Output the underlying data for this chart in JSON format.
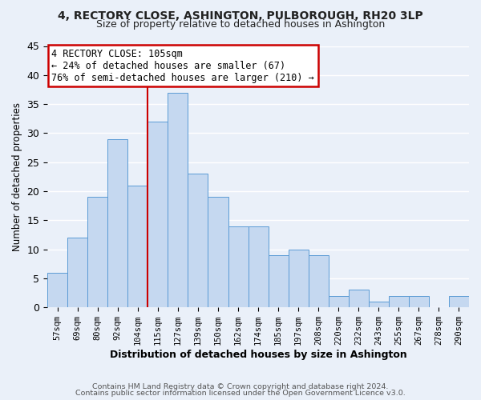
{
  "title1": "4, RECTORY CLOSE, ASHINGTON, PULBOROUGH, RH20 3LP",
  "title2": "Size of property relative to detached houses in Ashington",
  "xlabel": "Distribution of detached houses by size in Ashington",
  "ylabel": "Number of detached properties",
  "bar_labels": [
    "57sqm",
    "69sqm",
    "80sqm",
    "92sqm",
    "104sqm",
    "115sqm",
    "127sqm",
    "139sqm",
    "150sqm",
    "162sqm",
    "174sqm",
    "185sqm",
    "197sqm",
    "208sqm",
    "220sqm",
    "232sqm",
    "243sqm",
    "255sqm",
    "267sqm",
    "278sqm",
    "290sqm"
  ],
  "bar_values": [
    6,
    12,
    19,
    29,
    21,
    32,
    37,
    23,
    19,
    14,
    14,
    9,
    10,
    9,
    2,
    3,
    1,
    2,
    2,
    0,
    2
  ],
  "bar_color": "#c5d8f0",
  "bar_edge_color": "#5b9bd5",
  "bg_color": "#eaf0f9",
  "grid_color": "#ffffff",
  "vline_x_idx": 4,
  "vline_color": "#cc0000",
  "annotation_title": "4 RECTORY CLOSE: 105sqm",
  "annotation_line1": "← 24% of detached houses are smaller (67)",
  "annotation_line2": "76% of semi-detached houses are larger (210) →",
  "annotation_box_color": "#ffffff",
  "annotation_border_color": "#cc0000",
  "ylim": [
    0,
    45
  ],
  "yticks": [
    0,
    5,
    10,
    15,
    20,
    25,
    30,
    35,
    40,
    45
  ],
  "footer1": "Contains HM Land Registry data © Crown copyright and database right 2024.",
  "footer2": "Contains public sector information licensed under the Open Government Licence v3.0."
}
